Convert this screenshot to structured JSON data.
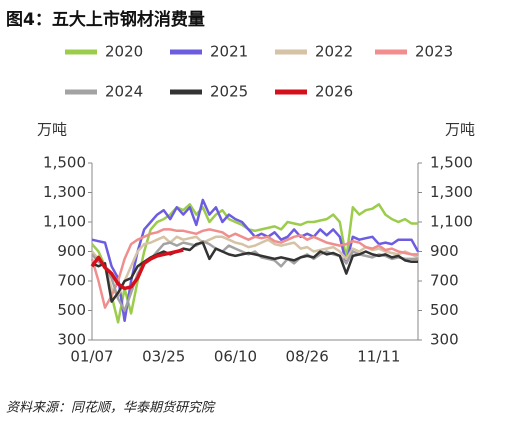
{
  "chart_data": {
    "type": "line",
    "title": "图4：五大上市钢材消费量",
    "y_label": "万吨",
    "y2_label": "万吨",
    "source": "资料来源：同花顺，华泰期货研究院",
    "categories": [
      "01/07",
      null,
      null,
      null,
      null,
      null,
      null,
      null,
      null,
      null,
      null,
      "03/25",
      null,
      null,
      null,
      null,
      null,
      null,
      null,
      null,
      null,
      null,
      "06/10",
      null,
      null,
      null,
      null,
      null,
      null,
      null,
      null,
      null,
      null,
      "08/26",
      null,
      null,
      null,
      null,
      null,
      null,
      null,
      null,
      null,
      null,
      "11/11",
      null,
      null,
      null,
      null,
      null,
      null
    ],
    "ylim": [
      300,
      1500
    ],
    "yticks": [
      {
        "value": 1500,
        "label": "1,500"
      },
      {
        "value": 1300,
        "label": "1,300"
      },
      {
        "value": 1100,
        "label": "1,100"
      },
      900,
      700,
      500,
      300
    ],
    "y2lim": [
      300,
      1500
    ],
    "y2ticks": [
      {
        "value": 1500,
        "label": "1,500"
      },
      {
        "value": 1300,
        "label": "1,300"
      },
      {
        "value": 1100,
        "label": "1,100"
      },
      900,
      700,
      500,
      300
    ],
    "series": [
      {
        "name": "2020",
        "color": "#9ccc4c",
        "values": [
          950,
          900,
          800,
          600,
          420,
          650,
          480,
          700,
          900,
          1050,
          1100,
          1120,
          1150,
          1200,
          1180,
          1220,
          1150,
          1200,
          1100,
          1150,
          1180,
          1120,
          1100,
          1080,
          1050,
          1040,
          1050,
          1060,
          1070,
          1050,
          1100,
          1090,
          1080,
          1100,
          1100,
          1110,
          1120,
          1150,
          1100,
          850,
          1200,
          1150,
          1180,
          1190,
          1220,
          1150,
          1120,
          1100,
          1120,
          1090,
          1090
        ]
      },
      {
        "name": "2021",
        "color": "#6c5ce0",
        "values": [
          980,
          970,
          960,
          800,
          720,
          430,
          700,
          900,
          1050,
          1100,
          1150,
          1180,
          1120,
          1200,
          1150,
          1200,
          1080,
          1250,
          1150,
          1200,
          1100,
          1150,
          1120,
          1100,
          1050,
          1000,
          1020,
          1000,
          1030,
          980,
          1000,
          1050,
          1000,
          1020,
          1000,
          1050,
          1010,
          1050,
          1000,
          820,
          1000,
          980,
          990,
          1000,
          950,
          960,
          950,
          980,
          980,
          980,
          900
        ]
      },
      {
        "name": "2022",
        "color": "#d6c2a4",
        "values": [
          900,
          850,
          800,
          650,
          600,
          700,
          800,
          900,
          950,
          960,
          980,
          1000,
          960,
          1000,
          980,
          990,
          1000,
          960,
          980,
          1000,
          1000,
          980,
          960,
          950,
          930,
          940,
          960,
          980,
          950,
          940,
          950,
          960,
          920,
          930,
          900,
          910,
          920,
          930,
          900,
          850,
          920,
          900,
          930,
          910,
          920,
          900,
          890,
          880,
          900,
          880,
          860
        ]
      },
      {
        "name": "2023",
        "color": "#f08e8e",
        "values": [
          850,
          700,
          520,
          600,
          700,
          850,
          950,
          980,
          1000,
          1020,
          1030,
          1050,
          1050,
          1040,
          1040,
          1030,
          1020,
          1040,
          1050,
          1040,
          1030,
          1000,
          1020,
          1000,
          980,
          1000,
          990,
          1000,
          970,
          960,
          980,
          1000,
          1010,
          980,
          1000,
          980,
          960,
          950,
          940,
          950,
          970,
          960,
          930,
          920,
          940,
          910,
          920,
          900,
          890,
          880,
          880
        ]
      },
      {
        "name": "2024",
        "color": "#a3a3a3",
        "values": [
          880,
          830,
          800,
          720,
          580,
          500,
          620,
          750,
          820,
          850,
          900,
          950,
          960,
          940,
          960,
          950,
          940,
          970,
          950,
          920,
          900,
          940,
          920,
          900,
          880,
          900,
          860,
          850,
          840,
          800,
          850,
          820,
          860,
          880,
          850,
          880,
          900,
          880,
          870,
          820,
          900,
          880,
          870,
          860,
          880,
          870,
          850,
          860,
          850,
          850,
          850
        ]
      },
      {
        "name": "2025",
        "color": "#333333",
        "values": [
          820,
          800,
          820,
          560,
          620,
          700,
          720,
          800,
          830,
          860,
          880,
          900,
          880,
          900,
          920,
          910,
          950,
          960,
          850,
          920,
          900,
          880,
          870,
          880,
          890,
          880,
          870,
          860,
          850,
          860,
          850,
          840,
          860,
          870,
          860,
          900,
          880,
          890,
          870,
          750,
          870,
          880,
          900,
          880,
          870,
          880,
          860,
          870,
          840,
          830,
          830
        ]
      },
      {
        "name": "2026",
        "color": "#d3101c",
        "values": [
          800,
          860,
          790,
          750,
          680,
          650,
          660,
          720,
          820,
          850,
          870,
          880,
          890,
          900,
          910,
          null,
          null,
          null,
          null,
          null,
          null,
          null,
          null,
          null,
          null,
          null,
          null,
          null,
          null,
          null,
          null,
          null,
          null,
          null,
          null,
          null,
          null,
          null,
          null,
          null,
          null,
          null,
          null,
          null,
          null,
          null,
          null,
          null,
          null,
          null,
          null
        ]
      }
    ]
  }
}
